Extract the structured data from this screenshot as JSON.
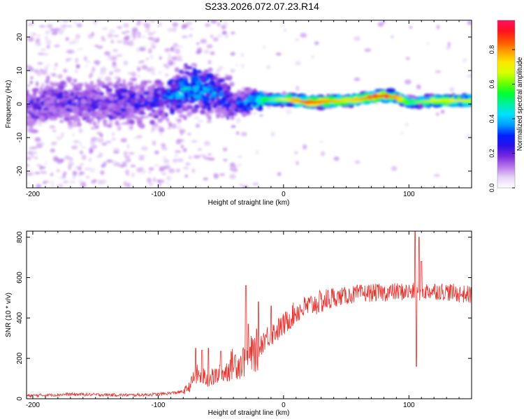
{
  "title": "S233.2026.072.07.23.R14",
  "colors": {
    "axis": "#000000",
    "snr_line": "#e8312c",
    "spectro_low": "#d8c8f5",
    "spectro_mid": "#6a18d6",
    "spectro_hi": "#ff1e3c"
  },
  "chart_data": [
    {
      "type": "heatmap",
      "name": "spectrogram",
      "xlabel": "Height of straight line (km)",
      "ylabel": "Frequency (Hz)",
      "xlim": [
        -205,
        150
      ],
      "ylim": [
        -25,
        25
      ],
      "xticks": [
        -200,
        -100,
        0,
        100
      ],
      "xtick_labels": [
        "-200",
        "-100",
        "0",
        "100"
      ],
      "yticks": [
        -20,
        -10,
        0,
        10,
        20
      ],
      "ytick_labels": [
        "-20",
        "-10",
        "0",
        "10",
        "20"
      ],
      "ridge": {
        "description": "dominant frequency ridge",
        "x": [
          -200,
          -150,
          -100,
          -80,
          -70,
          -60,
          -50,
          -40,
          -20,
          0,
          20,
          50,
          80,
          90,
          100,
          120,
          150
        ],
        "freq_hz": [
          0,
          0,
          1,
          4,
          5,
          4,
          3,
          0,
          1,
          1.5,
          0.5,
          1,
          2.5,
          2,
          0.5,
          1,
          1
        ],
        "amplitude": [
          0.2,
          0.2,
          0.25,
          0.4,
          0.45,
          0.35,
          0.3,
          0.25,
          0.5,
          0.7,
          0.9,
          0.75,
          0.9,
          0.8,
          0.55,
          0.7,
          0.7
        ]
      }
    },
    {
      "type": "colorbar",
      "name": "colorbar",
      "label": "Normalized spectral amplitude",
      "range": [
        0,
        0.97
      ],
      "ticks": [
        0.0,
        0.2,
        0.4,
        0.6,
        0.8
      ],
      "tick_labels": [
        "0.0",
        "0.2",
        "0.4",
        "0.6",
        "0.8"
      ],
      "colors": [
        "#ffffff",
        "#e6d3f5",
        "#b878ea",
        "#7b2ae0",
        "#2a10e6",
        "#0020ff",
        "#009cff",
        "#00e0ff",
        "#00f0a0",
        "#00ff30",
        "#70ff00",
        "#d8ff00",
        "#ffe600",
        "#ffa000",
        "#ff5000",
        "#ff1020",
        "#ff1060"
      ]
    },
    {
      "type": "line",
      "name": "snr",
      "xlabel": "Height of straight line (km)",
      "ylabel": "SNR (10 * v/v)",
      "xlim": [
        -205,
        150
      ],
      "ylim": [
        0,
        830
      ],
      "xticks": [
        -200,
        -100,
        0,
        100
      ],
      "xtick_labels": [
        "-200",
        "-100",
        "0",
        "100"
      ],
      "yticks": [
        0,
        200,
        400,
        600,
        800
      ],
      "ytick_labels": [
        "0",
        "200",
        "400",
        "600",
        "800"
      ],
      "series": [
        {
          "name": "SNR",
          "x": [
            -205,
            -190,
            -170,
            -150,
            -120,
            -100,
            -90,
            -80,
            -75,
            -70,
            -65,
            -60,
            -55,
            -50,
            -45,
            -40,
            -35,
            -30,
            -25,
            -20,
            -15,
            -10,
            -5,
            0,
            5,
            10,
            20,
            30,
            40,
            50,
            60,
            70,
            80,
            90,
            100,
            110,
            120,
            130,
            140,
            150
          ],
          "y": [
            15,
            18,
            22,
            20,
            18,
            22,
            28,
            35,
            60,
            120,
            110,
            95,
            110,
            120,
            140,
            180,
            170,
            200,
            220,
            250,
            300,
            320,
            340,
            365,
            400,
            430,
            460,
            480,
            500,
            510,
            520,
            525,
            525,
            530,
            530,
            530,
            535,
            530,
            520,
            515
          ]
        }
      ],
      "spikes": [
        {
          "x": -70,
          "y": 250
        },
        {
          "x": -65,
          "y": 240
        },
        {
          "x": -60,
          "y": 250
        },
        {
          "x": -50,
          "y": 235
        },
        {
          "x": -30,
          "y": 560
        },
        {
          "x": -28,
          "y": 370
        },
        {
          "x": -20,
          "y": 480
        },
        {
          "x": -10,
          "y": 460
        },
        {
          "x": 105,
          "y": 830
        },
        {
          "x": 106,
          "y": 160
        },
        {
          "x": 108,
          "y": 800
        },
        {
          "x": 110,
          "y": 680
        }
      ]
    }
  ]
}
